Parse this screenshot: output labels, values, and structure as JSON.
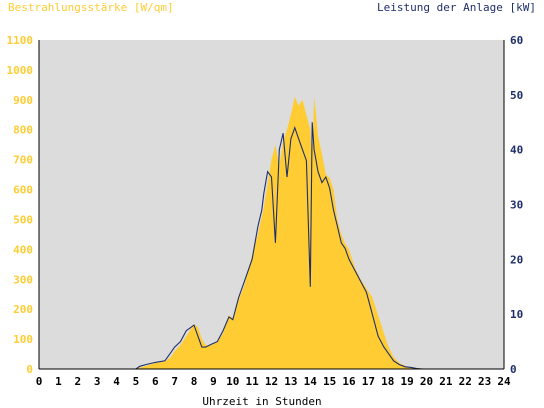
{
  "chart_data": {
    "type": "area",
    "title_left": "Bestrahlungsstärke [W/qm]",
    "title_right": "Leistung der Anlage [kW]",
    "xlabel": "Uhrzeit in Stunden",
    "xlim": [
      0,
      24
    ],
    "ylim_left": [
      0,
      1100
    ],
    "ylim_right": [
      0,
      60
    ],
    "x_ticks": [
      "0",
      "1",
      "2",
      "3",
      "4",
      "5",
      "6",
      "7",
      "8",
      "9",
      "10",
      "11",
      "12",
      "13",
      "14",
      "15",
      "16",
      "17",
      "18",
      "19",
      "20",
      "21",
      "22",
      "23",
      "24"
    ],
    "y_left_ticks": [
      "0",
      "100",
      "200",
      "300",
      "400",
      "500",
      "600",
      "700",
      "800",
      "900",
      "1000",
      "1100"
    ],
    "y_right_ticks": [
      "0",
      "10",
      "20",
      "30",
      "40",
      "50",
      "60"
    ],
    "grid": false,
    "colors": {
      "irradiance_fill": "#ffcc33",
      "power_line": "#1f2f6b",
      "plot_bg": "#dcdcdc",
      "left_axis_text": "#ffcc33",
      "right_axis_text": "#1f2f6b",
      "xlabel_text": "#000000"
    },
    "series": [
      {
        "axis": "left",
        "kind": "area",
        "x": [
          0,
          5.0,
          5.2,
          5.5,
          6.0,
          6.5,
          6.8,
          7.0,
          7.3,
          7.6,
          7.8,
          8.0,
          8.2,
          8.4,
          8.6,
          8.9,
          9.2,
          9.5,
          9.8,
          10.0,
          10.3,
          10.6,
          11.0,
          11.3,
          11.6,
          11.8,
          12.0,
          12.2,
          12.4,
          12.6,
          12.8,
          13.0,
          13.2,
          13.4,
          13.6,
          13.8,
          14.0,
          14.1,
          14.2,
          14.3,
          14.4,
          14.6,
          14.8,
          15.0,
          15.2,
          15.4,
          15.6,
          15.8,
          16.0,
          16.3,
          16.6,
          16.9,
          17.2,
          17.5,
          17.8,
          18.0,
          18.3,
          18.6,
          18.9,
          19.2,
          19.5,
          19.8,
          20.0,
          20.2,
          24
        ],
        "y": [
          0,
          0,
          5,
          10,
          20,
          25,
          40,
          60,
          80,
          110,
          130,
          150,
          140,
          100,
          80,
          80,
          90,
          120,
          180,
          170,
          230,
          280,
          380,
          450,
          540,
          620,
          700,
          750,
          680,
          760,
          800,
          850,
          910,
          880,
          900,
          850,
          800,
          700,
          910,
          850,
          780,
          720,
          650,
          640,
          600,
          500,
          450,
          420,
          400,
          340,
          300,
          270,
          240,
          180,
          120,
          80,
          40,
          20,
          10,
          5,
          3,
          2,
          1,
          0,
          0
        ]
      },
      {
        "axis": "right",
        "kind": "line",
        "x": [
          0,
          5.0,
          5.2,
          5.5,
          6.0,
          6.5,
          6.8,
          7.0,
          7.3,
          7.6,
          7.8,
          8.0,
          8.2,
          8.4,
          8.6,
          8.9,
          9.2,
          9.5,
          9.8,
          10.0,
          10.3,
          10.6,
          11.0,
          11.3,
          11.5,
          11.6,
          11.8,
          12.0,
          12.2,
          12.4,
          12.6,
          12.8,
          13.0,
          13.2,
          13.4,
          13.6,
          13.8,
          14.0,
          14.1,
          14.2,
          14.3,
          14.4,
          14.6,
          14.8,
          15.0,
          15.2,
          15.4,
          15.6,
          15.8,
          16.0,
          16.3,
          16.6,
          16.9,
          17.2,
          17.5,
          17.8,
          18.0,
          18.3,
          18.6,
          18.9,
          19.2,
          19.5,
          19.8,
          20.0,
          20.2,
          24
        ],
        "y": [
          0,
          0,
          0.5,
          0.8,
          1.2,
          1.5,
          3,
          4,
          5,
          7,
          7.5,
          8,
          6,
          4,
          4,
          4.5,
          5,
          7,
          9.5,
          9,
          13,
          16,
          20,
          26,
          29,
          32,
          36,
          35,
          23,
          40,
          43,
          35,
          42,
          44,
          42,
          40,
          38,
          15,
          45,
          40,
          38,
          36,
          34,
          35,
          33,
          29,
          26,
          23,
          22,
          20,
          18,
          16,
          14,
          10,
          6,
          4,
          3,
          1.5,
          0.8,
          0.4,
          0.3,
          0.1,
          0,
          0,
          0,
          0
        ]
      }
    ]
  }
}
